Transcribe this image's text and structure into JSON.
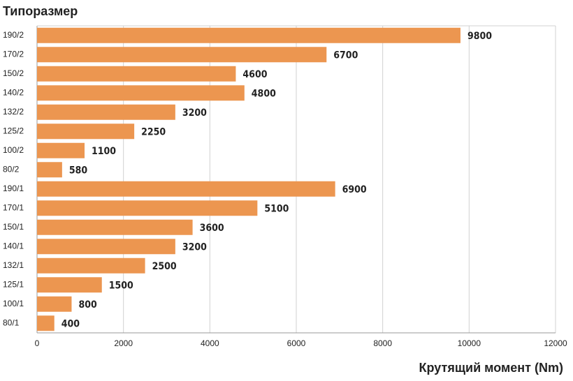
{
  "chart_data": {
    "type": "bar",
    "horizontal": true,
    "title": "Типоразмер",
    "x_label": "Крутящий момент (Nm)",
    "categories": [
      "190/2",
      "170/2",
      "150/2",
      "140/2",
      "132/2",
      "125/2",
      "100/2",
      "80/2",
      "190/1",
      "170/1",
      "150/1",
      "140/1",
      "132/1",
      "125/1",
      "100/1",
      "80/1"
    ],
    "values": [
      9800,
      6700,
      4600,
      4800,
      3200,
      2250,
      1100,
      580,
      6900,
      5100,
      3600,
      3200,
      2500,
      1500,
      800,
      400
    ],
    "color": "#ec9650",
    "xlim": [
      0,
      12000
    ],
    "xticks": [
      0,
      2000,
      4000,
      6000,
      8000,
      10000,
      12000
    ],
    "grid": true
  }
}
